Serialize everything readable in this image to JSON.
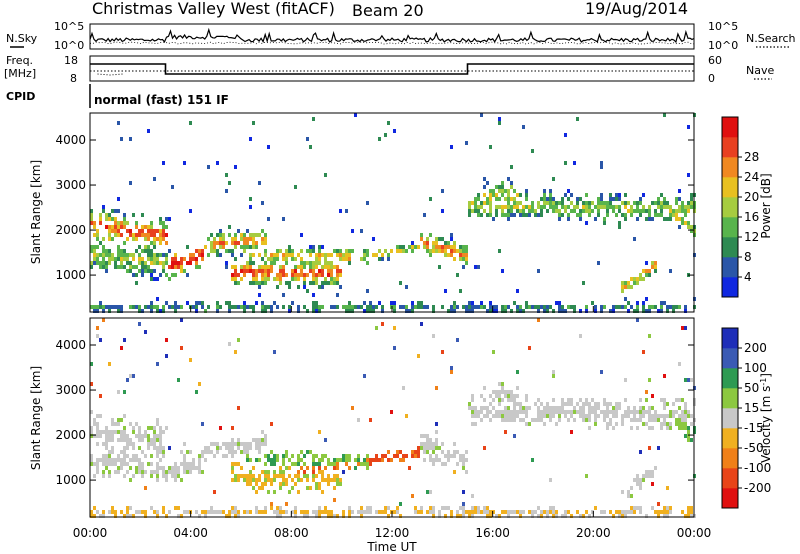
{
  "header": {
    "title": "Christmas Valley West (fitACF)",
    "beam": "Beam 20",
    "date": "19/Aug/2014"
  },
  "strip_nsky": {
    "left_label": "N.Sky",
    "right_label": "N.Search",
    "left_ticks": [
      "10^5",
      "10^0"
    ],
    "right_ticks": [
      "10^5",
      "10^0"
    ]
  },
  "strip_freq": {
    "left_label_1": "Freq.",
    "left_label_2": "[MHz]",
    "right_label": "Nave",
    "left_ticks": [
      "18",
      "8"
    ],
    "right_ticks": [
      "60",
      "0"
    ]
  },
  "cpid": {
    "label": "CPID",
    "value": "normal (fast) 151 IF"
  },
  "chart_data": [
    {
      "type": "heatmap",
      "panel": "power",
      "ylabel": "Slant Range [km]",
      "y_ticks": [
        "1000",
        "2000",
        "3000",
        "4000"
      ],
      "ylim": [
        180,
        4600
      ],
      "colorbar": {
        "label": "Power [dB]",
        "ticks": [
          "4",
          "8",
          "12",
          "16",
          "20",
          "24",
          "28"
        ],
        "colors": [
          "#1028e0",
          "#2a56a8",
          "#2e8a52",
          "#58b44c",
          "#a6cc40",
          "#e8c020",
          "#f08820",
          "#e84020",
          "#e01010"
        ]
      }
    },
    {
      "type": "heatmap",
      "panel": "velocity",
      "ylabel": "Slant Range [km]",
      "y_ticks": [
        "1000",
        "2000",
        "3000",
        "4000"
      ],
      "ylim": [
        180,
        4600
      ],
      "colorbar": {
        "label": "Velocity [m s^-1]",
        "ticks": [
          "200",
          "100",
          "50",
          "15",
          "-15",
          "-50",
          "-100",
          "-200"
        ],
        "colors": [
          "#1e2eb8",
          "#3a5ab4",
          "#2e9a52",
          "#8cc840",
          "#c8c8c8",
          "#f0b020",
          "#f08018",
          "#e84418",
          "#e01010"
        ]
      }
    }
  ],
  "x_axis": {
    "label": "Time UT",
    "ticks": [
      "00:00",
      "04:00",
      "08:00",
      "12:00",
      "16:00",
      "20:00",
      "00:00"
    ]
  }
}
